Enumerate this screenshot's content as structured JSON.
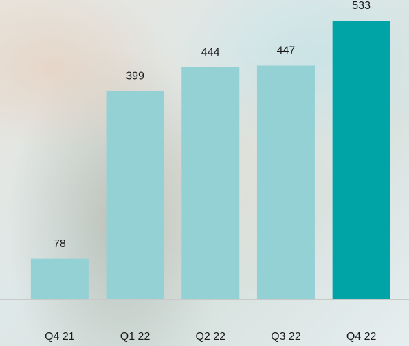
{
  "chart_data": {
    "type": "bar",
    "categories": [
      "Q4 21",
      "Q1 22",
      "Q2 22",
      "Q3 22",
      "Q4 22"
    ],
    "values": [
      78,
      399,
      444,
      447,
      533
    ],
    "colors": [
      "#93d1d4",
      "#93d1d4",
      "#93d1d4",
      "#93d1d4",
      "#00a3a6"
    ]
  }
}
